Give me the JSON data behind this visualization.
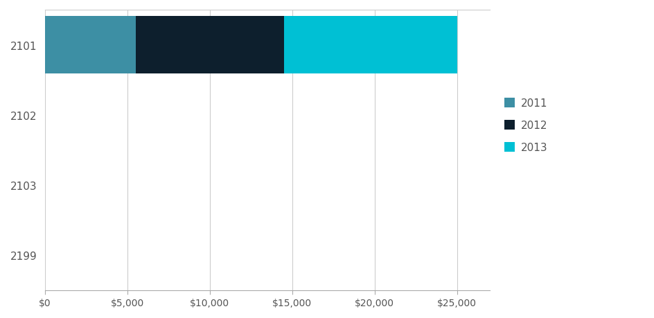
{
  "categories": [
    "2101",
    "2102",
    "2103",
    "2199"
  ],
  "years": [
    "2011",
    "2012",
    "2013"
  ],
  "values": {
    "2011": [
      5500,
      0,
      0,
      0
    ],
    "2012": [
      9000,
      0,
      0,
      0
    ],
    "2013": [
      10500,
      0,
      0,
      0
    ]
  },
  "colors": {
    "2011": "#3d8fa4",
    "2012": "#0d1f2d",
    "2013": "#00c0d4"
  },
  "xlim": [
    0,
    27000
  ],
  "xticks": [
    0,
    5000,
    10000,
    15000,
    20000,
    25000
  ],
  "xticklabels": [
    "$0",
    "$5,000",
    "$10,000",
    "$15,000",
    "$20,000",
    "$25,000"
  ],
  "bar_height": 0.82,
  "background_color": "#ffffff",
  "grid_color": "#cccccc",
  "tick_label_color": "#555555",
  "figsize": [
    9.45,
    4.6
  ],
  "dpi": 100
}
